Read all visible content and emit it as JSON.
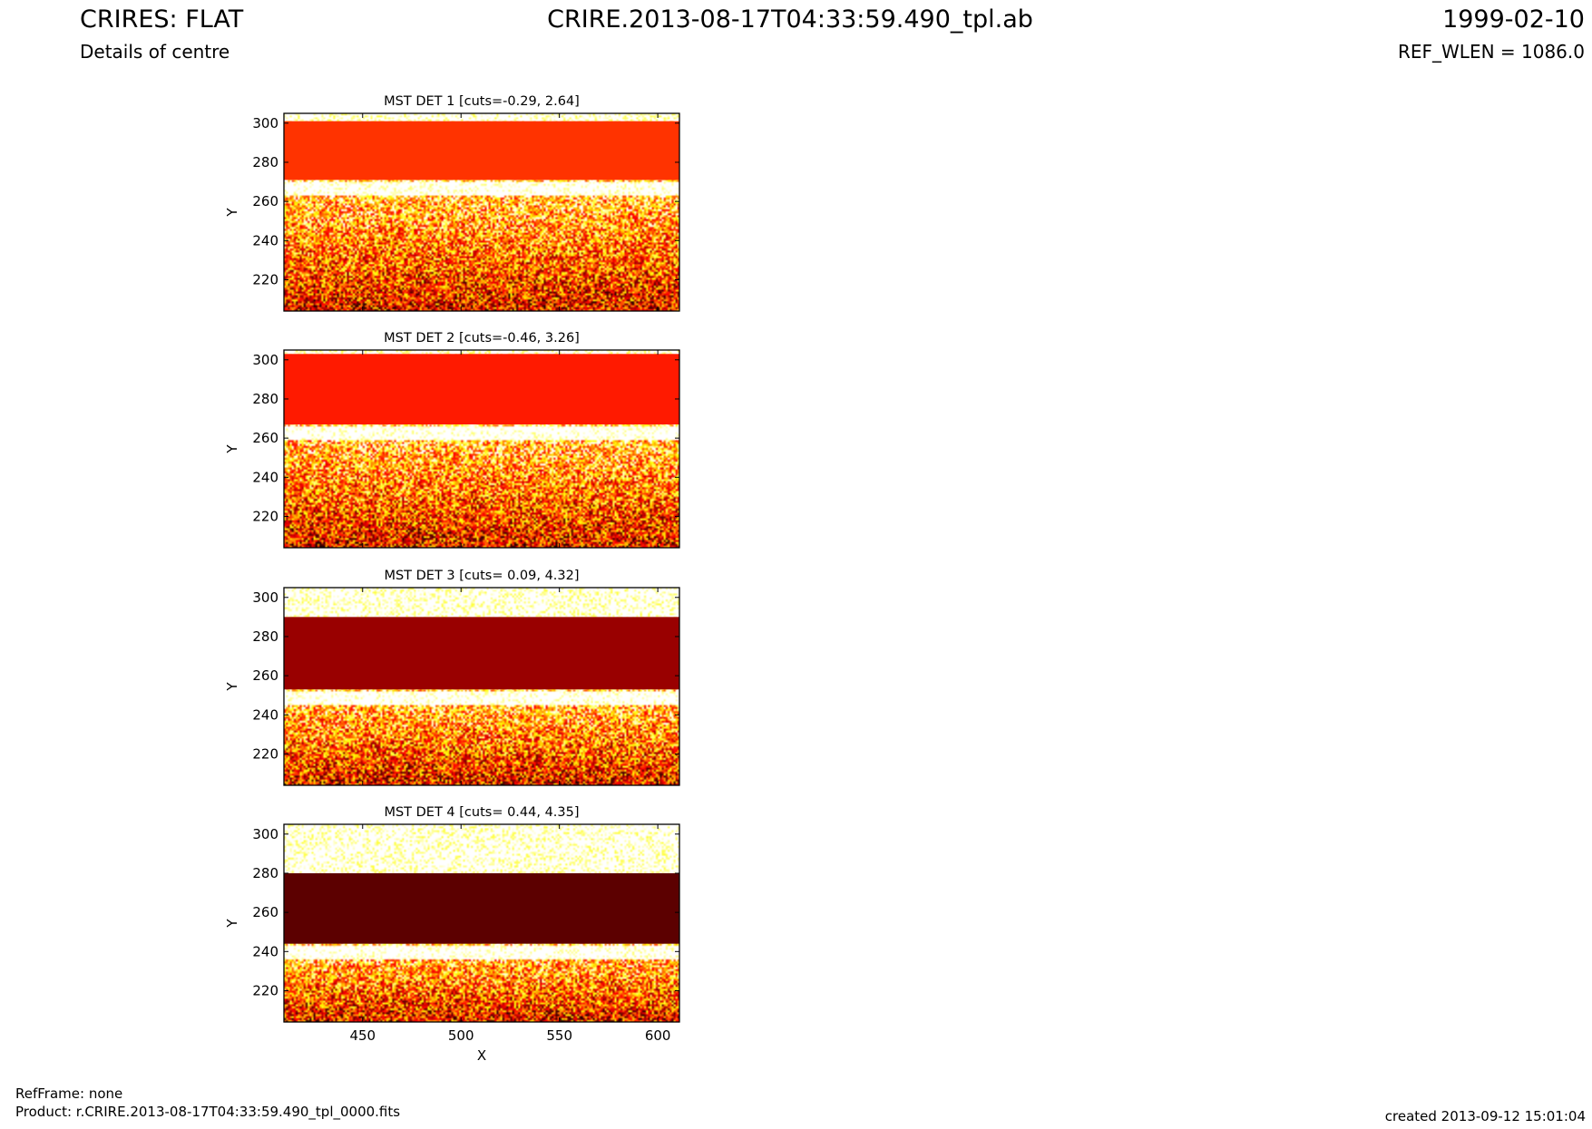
{
  "header": {
    "title_left": "CRIRES: FLAT",
    "subtitle_left": "Details of centre",
    "title_center": "CRIRE.2013-08-17T04:33:59.490_tpl.ab",
    "title_right": "1999-02-10",
    "subtitle_right": "REF_WLEN = 1086.0"
  },
  "footer": {
    "refframe": "RefFrame: none",
    "product": "Product: r.CRIRE.2013-08-17T04:33:59.490_tpl_0000.fits",
    "created": "created 2013-09-12 15:01:04"
  },
  "chart_data": [
    {
      "type": "heatmap",
      "title": "MST DET 1 [cuts=-0.29, 2.64]",
      "ylabel": "Y",
      "xlim": [
        410,
        611
      ],
      "ylim": [
        204,
        305
      ],
      "yticks": [
        220,
        240,
        260,
        280,
        300
      ],
      "band": {
        "y_low": 271,
        "y_high": 301,
        "color": "#ff3300"
      },
      "colormap": "hot"
    },
    {
      "type": "heatmap",
      "title": "MST DET 2 [cuts=-0.46, 3.26]",
      "ylabel": "Y",
      "xlim": [
        410,
        611
      ],
      "ylim": [
        204,
        305
      ],
      "yticks": [
        220,
        240,
        260,
        280,
        300
      ],
      "band": {
        "y_low": 267,
        "y_high": 303,
        "color": "#ff1a00"
      },
      "colormap": "hot"
    },
    {
      "type": "heatmap",
      "title": "MST DET 3 [cuts= 0.09, 4.32]",
      "ylabel": "Y",
      "xlim": [
        410,
        611
      ],
      "ylim": [
        204,
        305
      ],
      "yticks": [
        220,
        240,
        260,
        280,
        300
      ],
      "band": {
        "y_low": 253,
        "y_high": 290,
        "color": "#990000"
      },
      "colormap": "hot"
    },
    {
      "type": "heatmap",
      "title": "MST DET 4 [cuts= 0.44, 4.35]",
      "ylabel": "Y",
      "xlabel": "X",
      "xlim": [
        410,
        611
      ],
      "ylim": [
        204,
        305
      ],
      "xticks": [
        450,
        500,
        550,
        600
      ],
      "yticks": [
        220,
        240,
        260,
        280,
        300
      ],
      "band": {
        "y_low": 244,
        "y_high": 280,
        "color": "#5c0000"
      },
      "colormap": "hot"
    }
  ]
}
